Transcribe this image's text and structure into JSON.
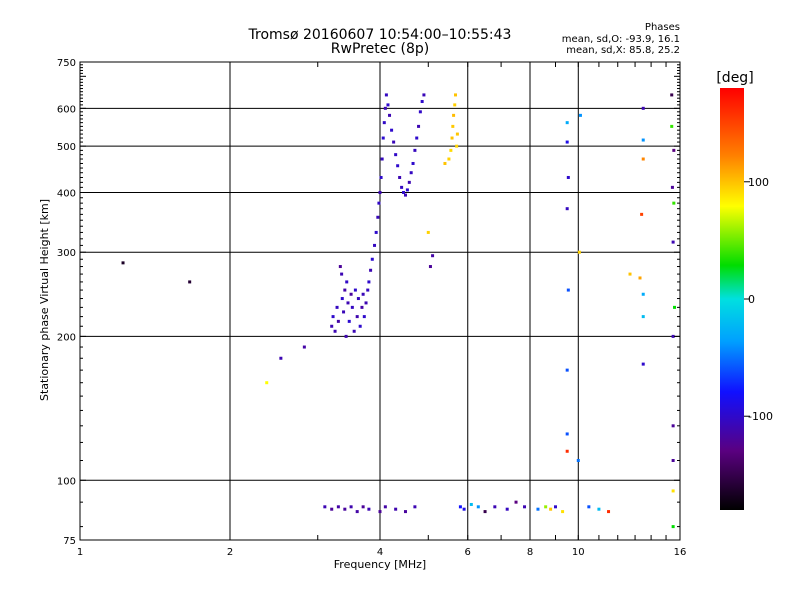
{
  "header": {
    "title_line1": "Tromsø 20160607 10:54:00–10:55:43",
    "title_line2": "RwPretec (8p)"
  },
  "phase_stats": {
    "heading": "Phases",
    "line_o": "mean, sd,O: -93.9, 16.1",
    "line_x": "mean, sd,X:  85.8, 25.2"
  },
  "colorbar": {
    "unit": "[deg]",
    "ticks": [
      {
        "value": 100,
        "label": "100"
      },
      {
        "value": 0,
        "label": "0"
      },
      {
        "value": -100,
        "label": "-100"
      }
    ],
    "range": [
      -180,
      180
    ]
  },
  "chart_data": {
    "type": "scatter",
    "xlabel": "Frequency [MHz]",
    "ylabel": "Stationary phase Virtual Height [km]",
    "xscale": "log",
    "yscale": "log",
    "xlim": [
      1,
      16
    ],
    "ylim": [
      75,
      750
    ],
    "xticks": [
      {
        "value": 1,
        "label": "1"
      },
      {
        "value": 2,
        "label": "2"
      },
      {
        "value": 4,
        "label": "4"
      },
      {
        "value": 6,
        "label": "6"
      },
      {
        "value": 8,
        "label": "8"
      },
      {
        "value": 10,
        "label": "10"
      },
      {
        "value": 16,
        "label": "16"
      }
    ],
    "yticks": [
      {
        "value": 75,
        "label": "75"
      },
      {
        "value": 100,
        "label": "100"
      },
      {
        "value": 200,
        "label": "200"
      },
      {
        "value": 300,
        "label": "300"
      },
      {
        "value": 400,
        "label": "400"
      },
      {
        "value": 500,
        "label": "500"
      },
      {
        "value": 600,
        "label": "600"
      },
      {
        "value": 750,
        "label": "750"
      }
    ],
    "grid": true,
    "color_encoding": "phase [deg]",
    "points": [
      [
        1.22,
        285,
        -165
      ],
      [
        1.66,
        260,
        -160
      ],
      [
        2.37,
        160,
        80
      ],
      [
        2.53,
        180,
        -110
      ],
      [
        2.82,
        190,
        -115
      ],
      [
        3.2,
        210,
        -110
      ],
      [
        3.22,
        220,
        -100
      ],
      [
        3.25,
        205,
        -110
      ],
      [
        3.28,
        230,
        -105
      ],
      [
        3.3,
        215,
        -115
      ],
      [
        3.33,
        280,
        -120
      ],
      [
        3.35,
        270,
        -110
      ],
      [
        3.36,
        240,
        -100
      ],
      [
        3.38,
        225,
        -108
      ],
      [
        3.4,
        250,
        -115
      ],
      [
        3.42,
        200,
        -112
      ],
      [
        3.43,
        260,
        -102
      ],
      [
        3.45,
        235,
        -110
      ],
      [
        3.47,
        215,
        -98
      ],
      [
        3.5,
        245,
        -118
      ],
      [
        3.52,
        230,
        -104
      ],
      [
        3.55,
        205,
        -109
      ],
      [
        3.57,
        250,
        -100
      ],
      [
        3.6,
        220,
        -112
      ],
      [
        3.62,
        240,
        -106
      ],
      [
        3.65,
        210,
        -100
      ],
      [
        3.68,
        230,
        -115
      ],
      [
        3.7,
        245,
        -108
      ],
      [
        3.72,
        220,
        -100
      ],
      [
        3.75,
        235,
        -110
      ],
      [
        3.78,
        250,
        -105
      ],
      [
        3.8,
        260,
        -100
      ],
      [
        3.83,
        275,
        -110
      ],
      [
        3.86,
        290,
        -98
      ],
      [
        3.9,
        310,
        -105
      ],
      [
        3.93,
        330,
        -100
      ],
      [
        3.96,
        355,
        -108
      ],
      [
        3.98,
        380,
        -102
      ],
      [
        4.0,
        400,
        -110
      ],
      [
        4.02,
        430,
        -100
      ],
      [
        4.04,
        470,
        -105
      ],
      [
        4.06,
        520,
        -98
      ],
      [
        4.08,
        560,
        -102
      ],
      [
        4.1,
        600,
        -110
      ],
      [
        4.12,
        640,
        -104
      ],
      [
        4.15,
        610,
        -100
      ],
      [
        4.18,
        580,
        -110
      ],
      [
        4.22,
        540,
        -100
      ],
      [
        4.26,
        510,
        -108
      ],
      [
        4.3,
        480,
        -102
      ],
      [
        4.34,
        455,
        -100
      ],
      [
        4.38,
        430,
        -110
      ],
      [
        4.42,
        410,
        -104
      ],
      [
        4.46,
        400,
        -100
      ],
      [
        4.5,
        395,
        -108
      ],
      [
        4.54,
        405,
        -98
      ],
      [
        4.58,
        420,
        -110
      ],
      [
        4.62,
        440,
        -104
      ],
      [
        4.66,
        460,
        -100
      ],
      [
        4.7,
        490,
        -106
      ],
      [
        4.74,
        520,
        -100
      ],
      [
        4.78,
        550,
        -110
      ],
      [
        4.82,
        590,
        -102
      ],
      [
        4.86,
        620,
        -100
      ],
      [
        4.9,
        640,
        -108
      ],
      [
        5.0,
        330,
        95
      ],
      [
        5.05,
        280,
        -120
      ],
      [
        5.1,
        295,
        -115
      ],
      [
        5.4,
        460,
        100
      ],
      [
        5.5,
        470,
        95
      ],
      [
        5.55,
        490,
        92
      ],
      [
        5.58,
        520,
        100
      ],
      [
        5.6,
        550,
        98
      ],
      [
        5.62,
        580,
        102
      ],
      [
        5.65,
        610,
        96
      ],
      [
        5.67,
        640,
        100
      ],
      [
        5.7,
        500,
        94
      ],
      [
        5.72,
        530,
        99
      ],
      [
        9.5,
        560,
        -30
      ],
      [
        9.5,
        510,
        -90
      ],
      [
        9.55,
        430,
        -100
      ],
      [
        9.5,
        370,
        -105
      ],
      [
        9.55,
        250,
        -60
      ],
      [
        9.5,
        170,
        -60
      ],
      [
        9.5,
        125,
        -60
      ],
      [
        9.5,
        115,
        160
      ],
      [
        10.0,
        110,
        -50
      ],
      [
        10.05,
        300,
        95
      ],
      [
        10.1,
        580,
        -40
      ],
      [
        12.7,
        270,
        100
      ],
      [
        13.3,
        265,
        110
      ],
      [
        13.4,
        360,
        150
      ],
      [
        13.5,
        245,
        -30
      ],
      [
        13.5,
        220,
        -20
      ],
      [
        13.5,
        175,
        -100
      ],
      [
        13.5,
        470,
        120
      ],
      [
        13.5,
        515,
        -40
      ],
      [
        13.5,
        600,
        -110
      ],
      [
        15.4,
        640,
        -150
      ],
      [
        15.4,
        550,
        40
      ],
      [
        15.45,
        410,
        -120
      ],
      [
        15.5,
        315,
        -110
      ],
      [
        15.5,
        200,
        -110
      ],
      [
        15.5,
        130,
        -120
      ],
      [
        15.5,
        110,
        -120
      ],
      [
        15.5,
        95,
        90
      ],
      [
        15.5,
        80,
        30
      ],
      [
        15.55,
        490,
        -130
      ],
      [
        15.55,
        380,
        40
      ],
      [
        15.6,
        230,
        30
      ],
      [
        3.1,
        88,
        -110
      ],
      [
        3.2,
        87,
        -120
      ],
      [
        3.3,
        88,
        -115
      ],
      [
        3.4,
        87,
        -118
      ],
      [
        3.5,
        88,
        -112
      ],
      [
        3.6,
        86,
        -115
      ],
      [
        3.7,
        88,
        -120
      ],
      [
        3.8,
        87,
        -110
      ],
      [
        4.0,
        86,
        -120
      ],
      [
        4.1,
        88,
        -115
      ],
      [
        4.3,
        87,
        -112
      ],
      [
        4.5,
        86,
        -118
      ],
      [
        4.7,
        88,
        -110
      ],
      [
        5.8,
        88,
        -80
      ],
      [
        5.9,
        87,
        -90
      ],
      [
        6.1,
        89,
        -20
      ],
      [
        6.3,
        88,
        -40
      ],
      [
        6.5,
        86,
        -150
      ],
      [
        6.8,
        88,
        -110
      ],
      [
        7.2,
        87,
        -105
      ],
      [
        7.5,
        90,
        -130
      ],
      [
        7.8,
        88,
        -110
      ],
      [
        8.3,
        87,
        -50
      ],
      [
        8.6,
        88,
        60
      ],
      [
        8.8,
        87,
        100
      ],
      [
        9.0,
        88,
        -100
      ],
      [
        9.3,
        86,
        90
      ],
      [
        10.5,
        88,
        -60
      ],
      [
        11.0,
        87,
        -20
      ],
      [
        11.5,
        86,
        160
      ]
    ]
  }
}
